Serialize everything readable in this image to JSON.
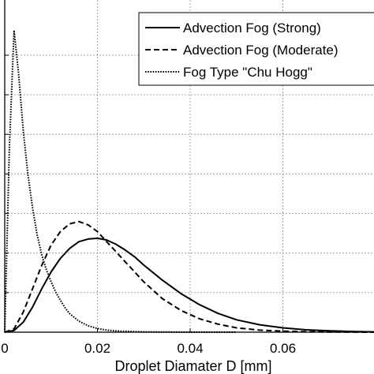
{
  "chart_data": {
    "type": "line",
    "xlabel": "Droplet Diamater D [mm]",
    "ylabel": "",
    "xlim": [
      0,
      0.08
    ],
    "ylim": [
      0,
      1
    ],
    "xticks": [
      0,
      0.02,
      0.04,
      0.06
    ],
    "xtick_labels": [
      "0",
      "0.02",
      "0.04",
      "0.06"
    ],
    "grid": true,
    "legend_position": "top-right",
    "series": [
      {
        "name": "Advection Fog (Strong)",
        "line_style": "solid",
        "x": [
          0,
          0.002,
          0.004,
          0.006,
          0.008,
          0.01,
          0.012,
          0.014,
          0.016,
          0.018,
          0.02,
          0.022,
          0.024,
          0.026,
          0.028,
          0.03,
          0.034,
          0.038,
          0.042,
          0.046,
          0.05,
          0.055,
          0.06,
          0.065,
          0.07,
          0.075,
          0.08
        ],
        "y": [
          0,
          0.005,
          0.03,
          0.075,
          0.13,
          0.18,
          0.22,
          0.25,
          0.27,
          0.278,
          0.28,
          0.275,
          0.262,
          0.245,
          0.225,
          0.2,
          0.155,
          0.115,
          0.082,
          0.056,
          0.037,
          0.022,
          0.013,
          0.007,
          0.004,
          0.002,
          0.001
        ]
      },
      {
        "name": "Advection Fog (Moderate)",
        "line_style": "dashed",
        "x": [
          0,
          0.002,
          0.004,
          0.006,
          0.008,
          0.01,
          0.012,
          0.014,
          0.016,
          0.018,
          0.02,
          0.022,
          0.024,
          0.026,
          0.028,
          0.03,
          0.034,
          0.038,
          0.042,
          0.046,
          0.05,
          0.055,
          0.06,
          0.065,
          0.07,
          0.075,
          0.08
        ],
        "y": [
          0,
          0.01,
          0.06,
          0.13,
          0.2,
          0.26,
          0.3,
          0.323,
          0.33,
          0.32,
          0.3,
          0.27,
          0.24,
          0.21,
          0.18,
          0.15,
          0.1,
          0.065,
          0.04,
          0.024,
          0.013,
          0.006,
          0.003,
          0.0015,
          0.0007,
          0.0003,
          0.0001
        ]
      },
      {
        "name": "Fog Type \"Chu Hogg\"",
        "line_style": "dotted",
        "x": [
          0,
          0.001,
          0.002,
          0.003,
          0.004,
          0.005,
          0.006,
          0.007,
          0.008,
          0.009,
          0.01,
          0.011,
          0.012,
          0.013,
          0.014,
          0.016,
          0.018,
          0.02,
          0.022,
          0.025,
          0.03,
          0.035,
          0.04,
          0.05
        ],
        "y": [
          0,
          0.55,
          0.9,
          0.77,
          0.6,
          0.47,
          0.37,
          0.29,
          0.23,
          0.185,
          0.15,
          0.12,
          0.095,
          0.073,
          0.055,
          0.033,
          0.019,
          0.011,
          0.006,
          0.003,
          0.001,
          0.0004,
          0.0001,
          0
        ]
      }
    ]
  }
}
